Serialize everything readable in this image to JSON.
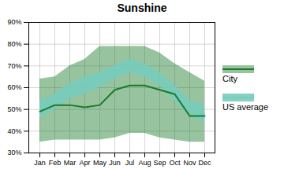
{
  "chart_data": {
    "type": "line",
    "title": "Sunshine",
    "categories": [
      "Jan",
      "Feb",
      "Mar",
      "Apr",
      "May",
      "Jun",
      "Jul",
      "Aug",
      "Sep",
      "Oct",
      "Nov",
      "Dec"
    ],
    "series": [
      {
        "name": "City",
        "color": "#1a7a2a",
        "values": [
          49,
          52,
          52,
          51,
          52,
          59,
          61,
          61,
          59,
          57,
          47,
          47
        ],
        "upper": [
          64,
          65,
          70,
          73,
          79,
          79,
          79,
          79,
          76,
          71,
          67,
          63
        ],
        "lower": [
          35,
          36,
          36,
          36,
          36,
          37,
          39,
          39,
          37,
          36,
          35,
          35
        ]
      },
      {
        "name": "US average",
        "color": "#77ccbb",
        "values": [
          50,
          54,
          58,
          61,
          64,
          67,
          70,
          68,
          64,
          57,
          50,
          48
        ],
        "upper": [
          54,
          57,
          62,
          65,
          67,
          70,
          73,
          71,
          67,
          61,
          54,
          52
        ],
        "lower": [
          46,
          50,
          55,
          57,
          60,
          64,
          67,
          65,
          61,
          54,
          47,
          44
        ]
      }
    ],
    "ylim": [
      30,
      90
    ],
    "yticks": [
      {
        "value": 30,
        "label": "30%"
      },
      {
        "value": 40,
        "label": "40%"
      },
      {
        "value": 50,
        "label": "50%"
      },
      {
        "value": 60,
        "label": "60%"
      },
      {
        "value": 70,
        "label": "70%"
      },
      {
        "value": 80,
        "label": "80%"
      },
      {
        "value": 90,
        "label": "90%"
      }
    ],
    "grid": true
  }
}
